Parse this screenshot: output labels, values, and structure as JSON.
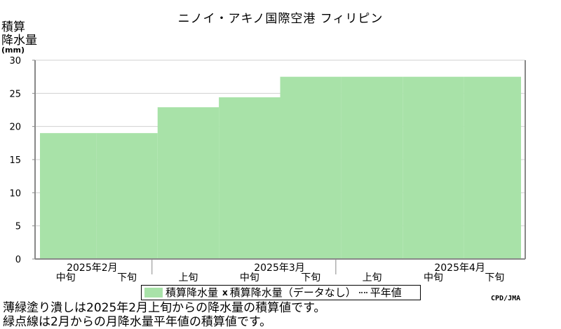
{
  "title": "ニノイ・アキノ国際空港 フィリピン",
  "y_axis": {
    "label_line1": "積算",
    "label_line2": "降水量",
    "unit": "(mm)"
  },
  "legend": {
    "filled": "積算降水量",
    "x_mark": "x",
    "missing": "積算降水量（データなし）",
    "normal": "平年値"
  },
  "credit": "CPD/JMA",
  "notes": [
    "薄緑塗り潰しは2025年2月上旬からの降水量の積算値です。",
    "緑点線は2月からの月降水量平年値の積算値です。"
  ],
  "colors": {
    "fill": "#a8e2a8",
    "grid": "#d0d0d0",
    "axis": "#888888"
  },
  "chart_data": {
    "type": "area",
    "step": true,
    "series": [
      {
        "name": "積算降水量",
        "values": [
          19.0,
          19.0,
          22.9,
          24.4,
          27.5,
          27.5,
          27.5,
          27.5
        ]
      }
    ],
    "periods": [
      "2025年2月中旬",
      "2025年2月下旬",
      "2025年3月上旬",
      "2025年3月中旬",
      "2025年3月下旬",
      "2025年4月上旬",
      "2025年4月中旬",
      "2025年4月下旬"
    ],
    "tick_labels": [
      "中旬",
      "下旬",
      "上旬",
      "中旬",
      "下旬",
      "上旬",
      "中旬",
      "下旬"
    ],
    "month_labels": [
      "2025年2月",
      "2025年3月",
      "2025年4月"
    ],
    "yticks": [
      0,
      5,
      10,
      15,
      20,
      25,
      30
    ],
    "ylim": [
      0,
      30
    ],
    "grid": true
  }
}
